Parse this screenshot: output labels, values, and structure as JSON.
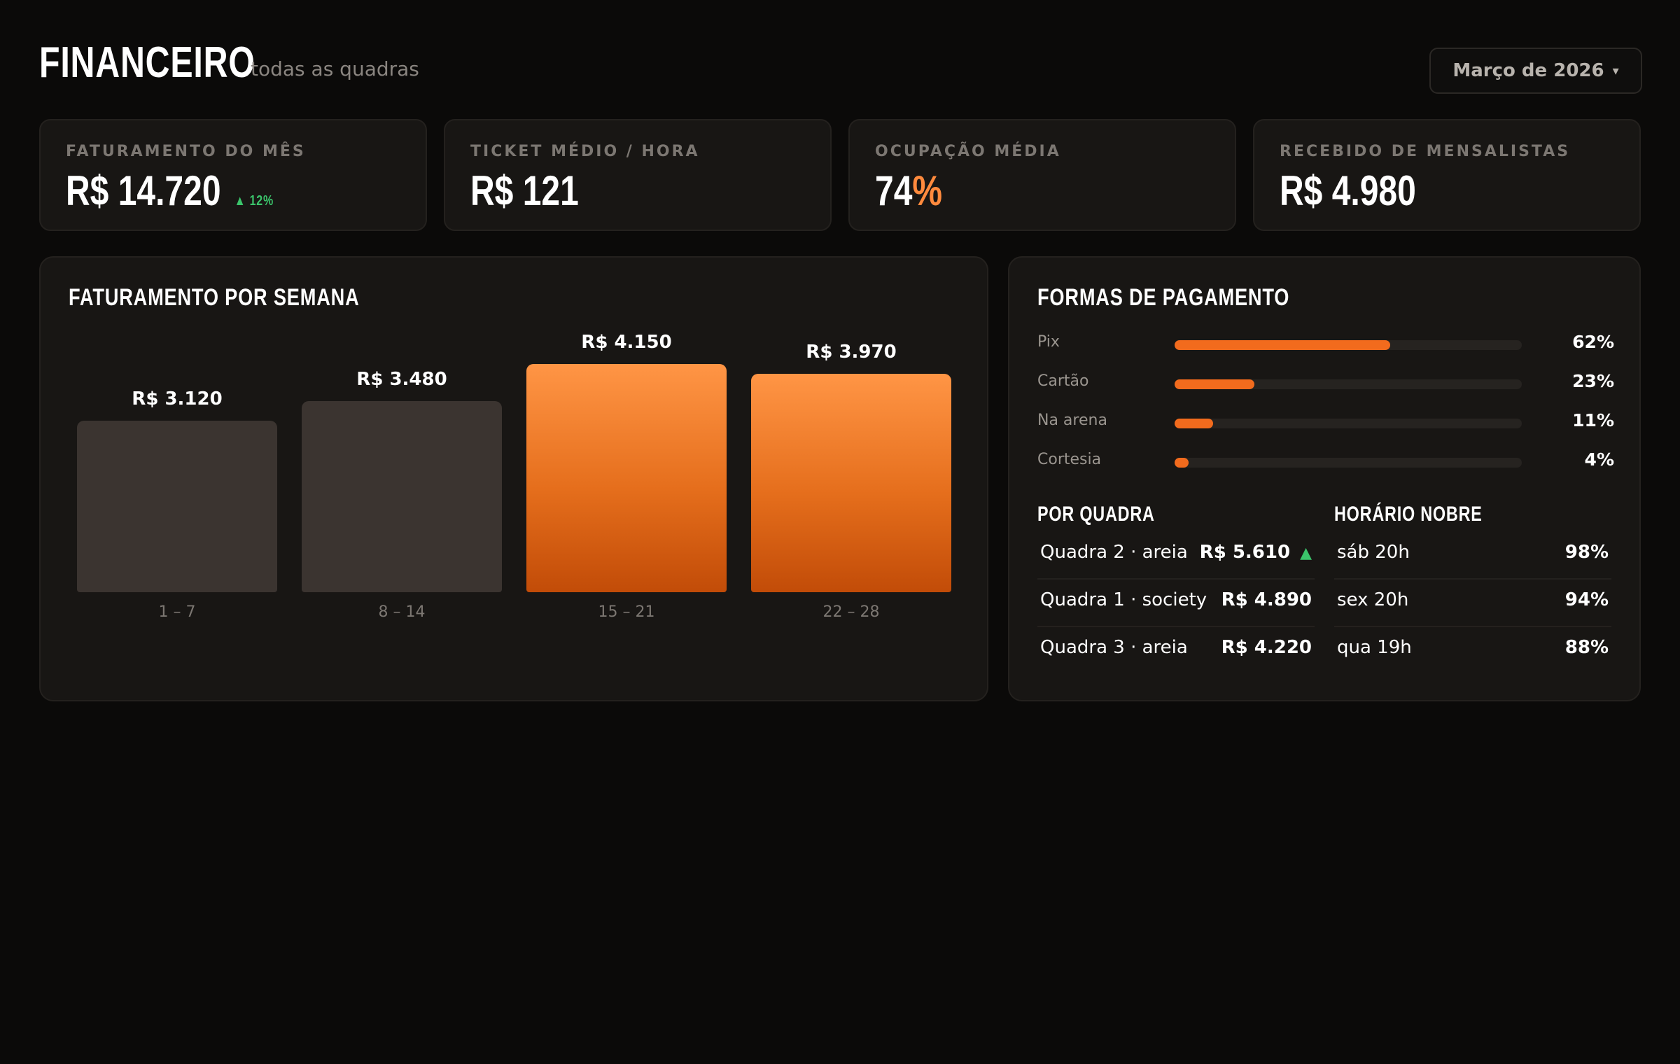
{
  "header": {
    "title": "FINANCEIRO",
    "subtitle": "todas as quadras",
    "month_select": "Março de 2026",
    "month_chevron": "▾"
  },
  "kpis": [
    {
      "label": "FATURAMENTO DO MÊS",
      "value": "R$ 14.720",
      "trend": "▲ 12%"
    },
    {
      "label": "TICKET MÉDIO / HORA",
      "value": "R$ 121"
    },
    {
      "label": "OCUPAÇÃO MÉDIA",
      "value_number": "74",
      "value_unit": "%"
    },
    {
      "label": "RECEBIDO DE MENSALISTAS",
      "value": "R$ 4.980"
    }
  ],
  "weekly": {
    "title": "FATURAMENTO POR SEMANA"
  },
  "chart_data": {
    "type": "bar",
    "title": "FATURAMENTO POR SEMANA",
    "categories": [
      "1 – 7",
      "8 – 14",
      "15 – 21",
      "22 – 28"
    ],
    "values": [
      3120,
      3480,
      4150,
      3970
    ],
    "value_labels": [
      "R$ 3.120",
      "R$ 3.480",
      "R$ 4.150",
      "R$ 3.970"
    ],
    "highlighted": [
      false,
      false,
      true,
      true
    ],
    "colors": {
      "default": "#3b3430",
      "highlight": "#ff8a3d"
    },
    "ylim": [
      0,
      4150
    ],
    "grid": false
  },
  "payments": {
    "title": "FORMAS DE PAGAMENTO",
    "items": [
      {
        "name": "Pix",
        "percent": 62,
        "label": "62%"
      },
      {
        "name": "Cartão",
        "percent": 23,
        "label": "23%"
      },
      {
        "name": "Na arena",
        "percent": 11,
        "label": "11%"
      },
      {
        "name": "Cortesia",
        "percent": 4,
        "label": "4%"
      }
    ]
  },
  "by_court": {
    "title": "POR QUADRA",
    "rows": [
      {
        "name": "Quadra 2 · areia",
        "value": "R$ 5.610",
        "trend": "▲"
      },
      {
        "name": "Quadra 1 · society",
        "value": "R$ 4.890"
      },
      {
        "name": "Quadra 3 · areia",
        "value": "R$ 4.220"
      }
    ]
  },
  "peak_hours": {
    "title": "HORÁRIO NOBRE",
    "rows": [
      {
        "time": "sáb 20h",
        "value": "98%"
      },
      {
        "time": "sex 20h",
        "value": "94%"
      },
      {
        "time": "qua 19h",
        "value": "88%"
      }
    ]
  },
  "colors": {
    "background": "#0b0a09",
    "card": "#181614",
    "accent": "#ff8a3d",
    "positive": "#3bc46b",
    "muted": "#7c7772"
  }
}
